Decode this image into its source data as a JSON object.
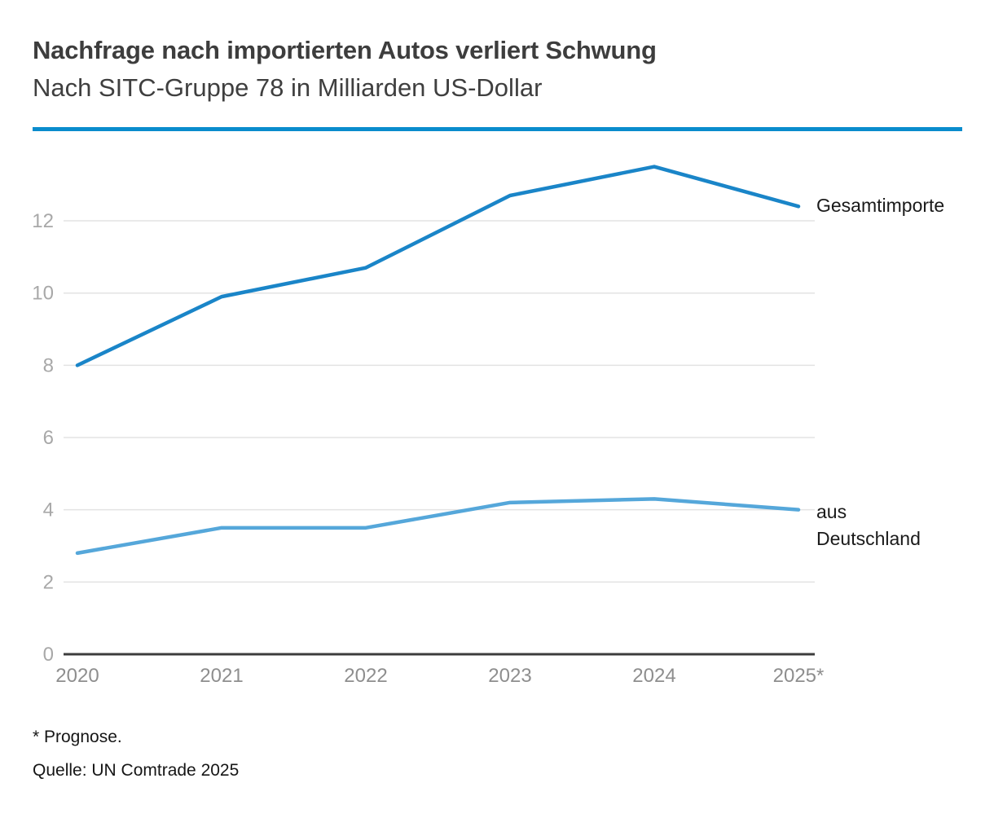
{
  "header": {
    "title": "Nachfrage nach importierten Autos verliert Schwung",
    "subtitle": "Nach SITC-Gruppe 78 in Milliarden US-Dollar",
    "divider_color": "#0a8ccd"
  },
  "chart_data": {
    "type": "line",
    "title": "Nachfrage nach importierten Autos verliert Schwung",
    "subtitle": "Nach SITC-Gruppe 78 in Milliarden US-Dollar",
    "categories": [
      "2020",
      "2021",
      "2022",
      "2023",
      "2024",
      "2025*"
    ],
    "series": [
      {
        "name": "Gesamtimporte",
        "values": [
          8.0,
          9.9,
          10.7,
          12.7,
          13.5,
          12.4
        ],
        "color": "#1a85c8"
      },
      {
        "name": "aus Deutschland",
        "values": [
          2.8,
          3.5,
          3.5,
          4.2,
          4.3,
          4.0
        ],
        "color": "#55a7da"
      }
    ],
    "yticks": [
      0,
      2,
      4,
      6,
      8,
      10,
      12
    ],
    "ylim": [
      0,
      14
    ],
    "xlabel": "",
    "ylabel": "",
    "grid": "horizontal-only",
    "legend_position": "labels-at-line-end-right"
  },
  "labels": {
    "series1": "Gesamtimporte",
    "series2_line1": "aus",
    "series2_line2": "Deutschland"
  },
  "footer": {
    "footnote": "* Prognose.",
    "source": "Quelle: UN Comtrade 2025"
  }
}
